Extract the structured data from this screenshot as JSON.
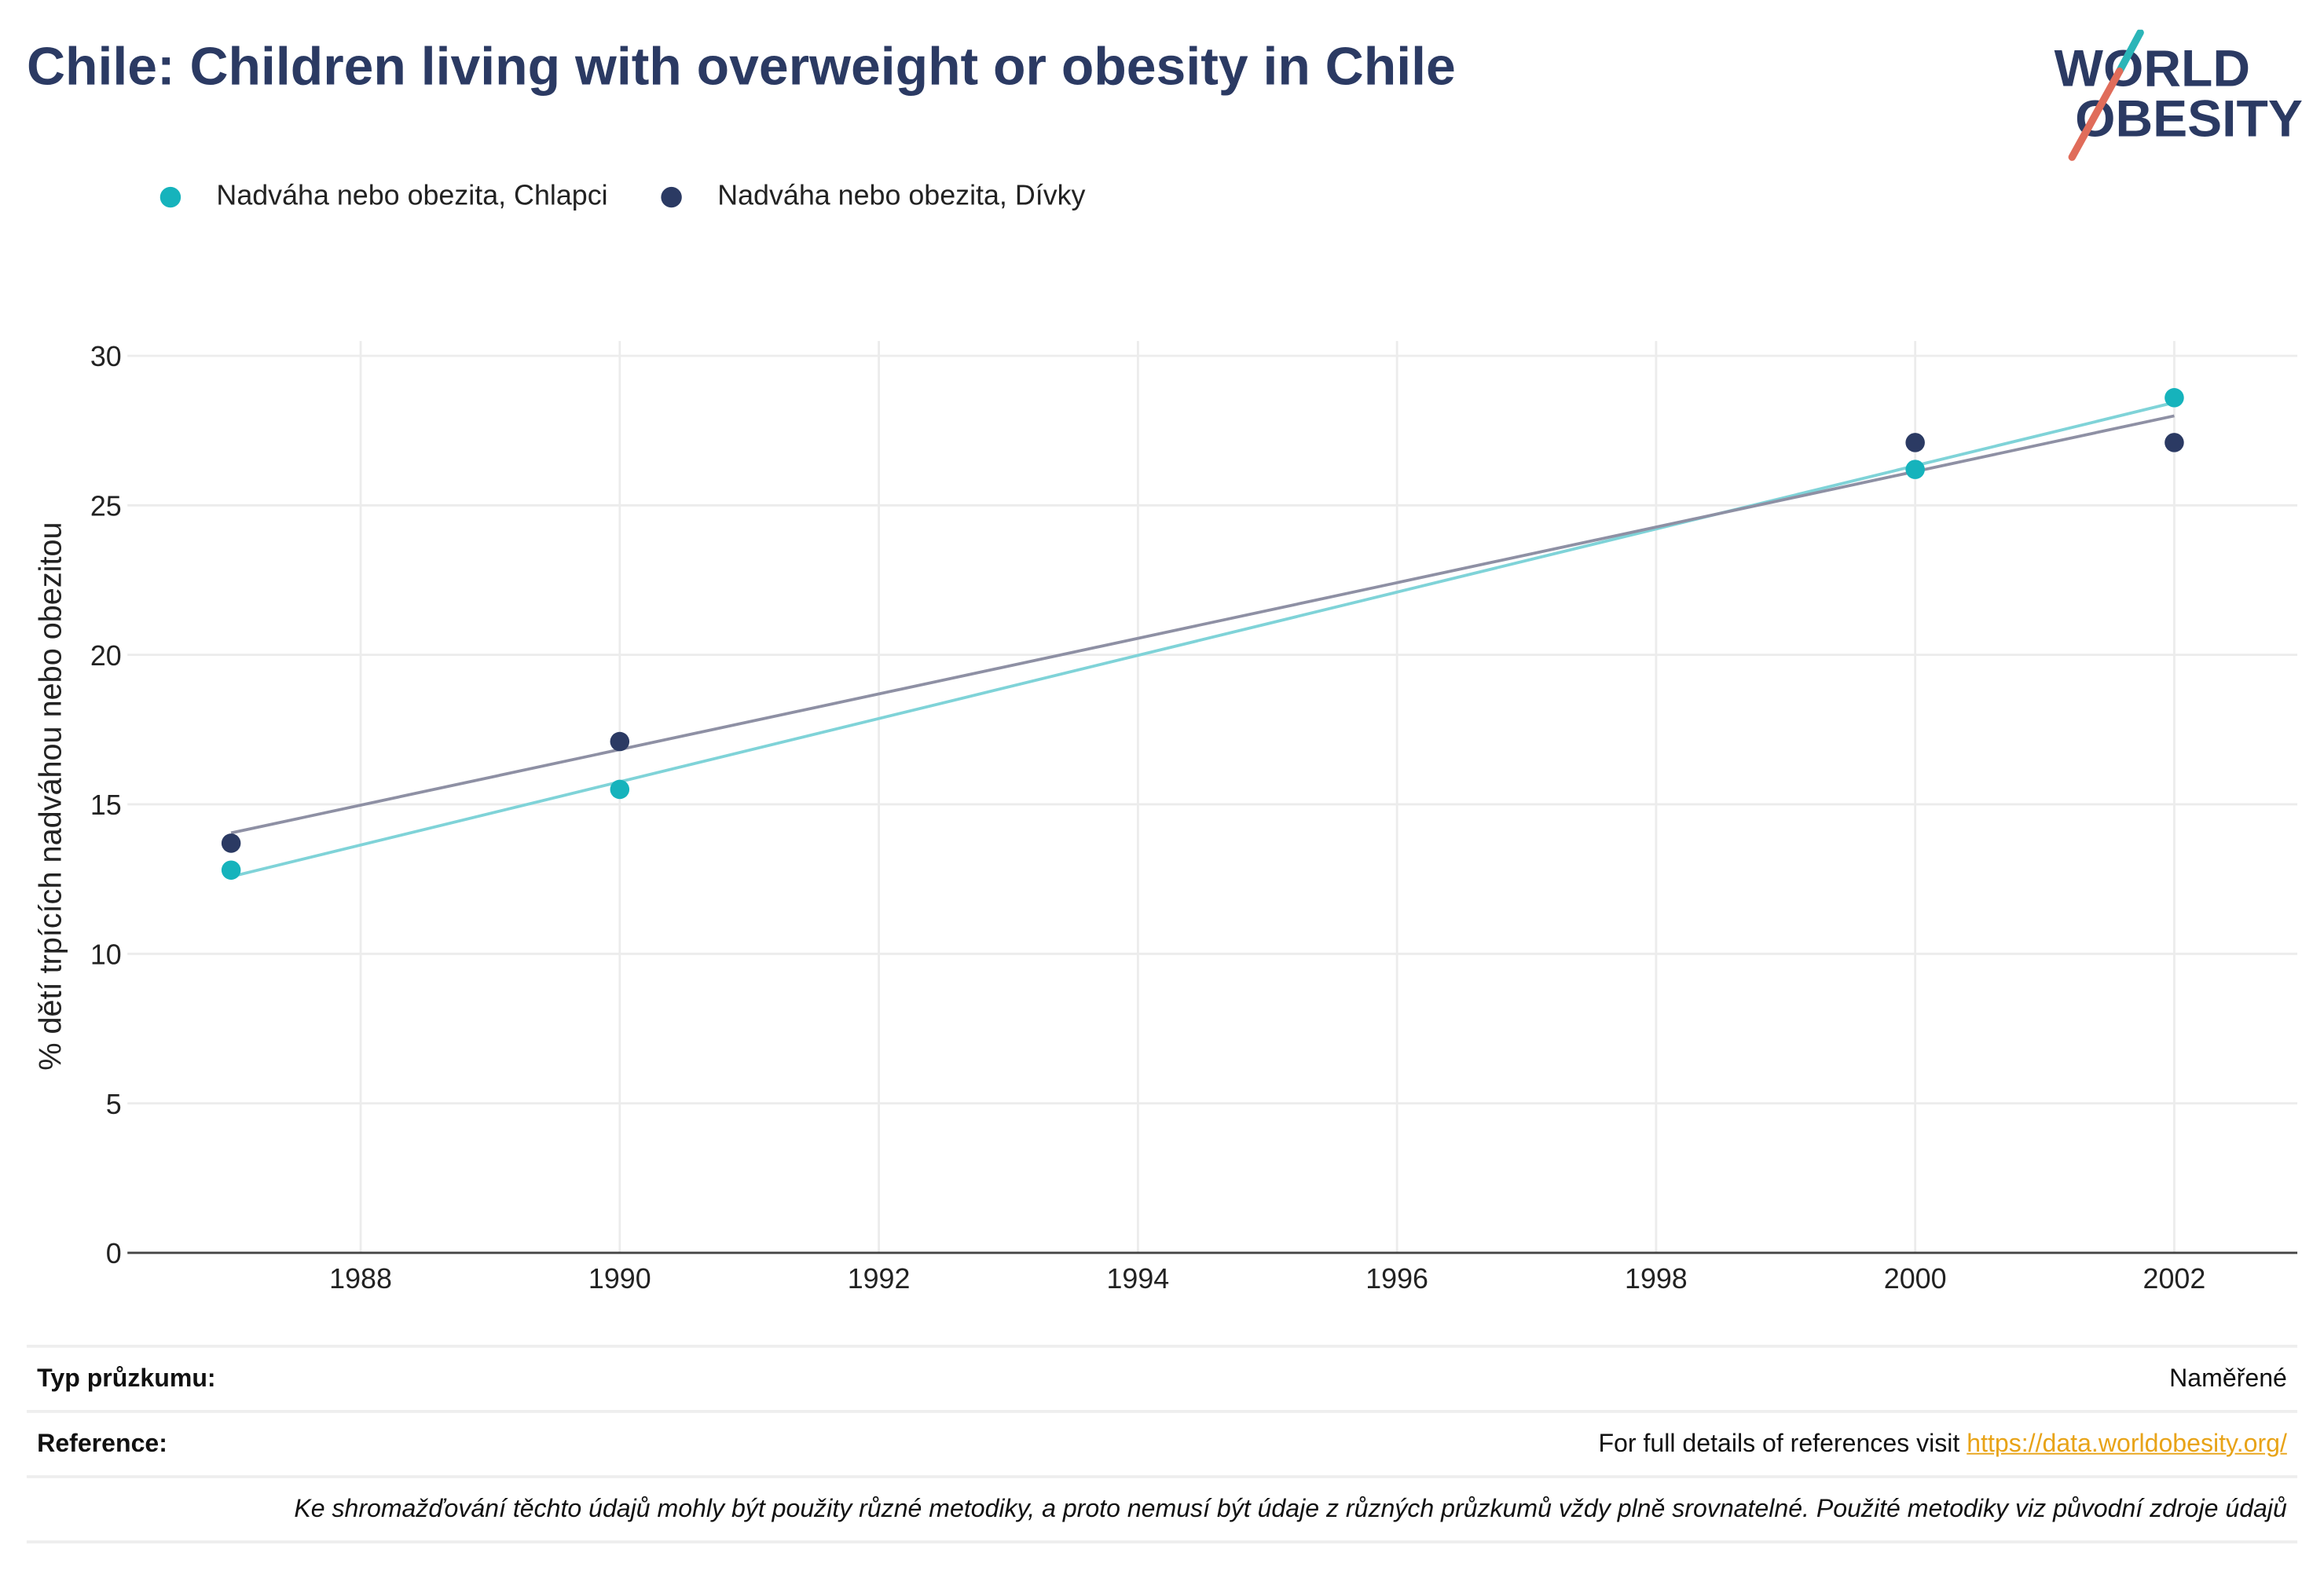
{
  "title": "Chile: Children living with overweight or obesity in Chile",
  "logo": {
    "line1": "WORLD",
    "line2": "OBESITY",
    "accent_teal": "#2bb5b8",
    "accent_red": "#e06c5a",
    "text_color": "#2b3a63"
  },
  "chart_data": {
    "type": "scatter",
    "title": "Chile: Children living with overweight or obesity in Chile",
    "xlabel": "",
    "ylabel": "% dětí trpících nadváhou nebo obezitou",
    "xlim": [
      1986.2,
      2002.95
    ],
    "ylim": [
      0,
      30
    ],
    "x_ticks": [
      1988,
      1990,
      1992,
      1994,
      1996,
      1998,
      2000,
      2002
    ],
    "y_ticks": [
      0,
      5,
      10,
      15,
      20,
      25,
      30
    ],
    "grid": true,
    "legend_position": "top-left",
    "series": [
      {
        "name": "Nadváha nebo obezita, Chlapci",
        "color": "#16b3bc",
        "trend_color": "#7fd3d8",
        "points": [
          {
            "x": 1987,
            "y": 12.8
          },
          {
            "x": 1990,
            "y": 15.5
          },
          {
            "x": 2000,
            "y": 26.2
          },
          {
            "x": 2002,
            "y": 28.6
          }
        ]
      },
      {
        "name": "Nadváha nebo obezita, Dívky",
        "color": "#2b3a63",
        "trend_color": "#8e90a4",
        "points": [
          {
            "x": 1987,
            "y": 13.7
          },
          {
            "x": 1990,
            "y": 17.1
          },
          {
            "x": 2000,
            "y": 27.1
          },
          {
            "x": 2002,
            "y": 27.1
          }
        ]
      }
    ]
  },
  "info": {
    "survey_type_label": "Typ průzkumu:",
    "survey_type_value": "Naměřené",
    "reference_label": "Reference:",
    "reference_text": "For full details of references visit ",
    "reference_link": "https://data.worldobesity.org/",
    "note": "Ke shromažďování těchto údajů mohly být použity různé metodiky, a proto nemusí být údaje z různých průzkumů vždy plně srovnatelné. Použité metodiky viz původní zdroje údajů"
  }
}
